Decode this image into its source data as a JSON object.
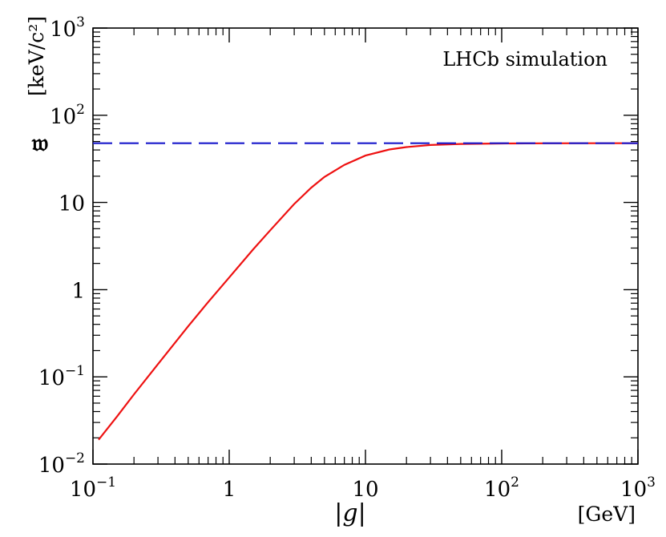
{
  "chart_data": {
    "type": "line",
    "title": "",
    "annotation": "LHCb simulation",
    "xlabel": "|g|",
    "xunit": "[GeV]",
    "ylabel": "𝔴",
    "yunit": "[keV/c²]",
    "xscale": "log",
    "yscale": "log",
    "xlim": [
      0.1,
      1000
    ],
    "ylim": [
      0.01,
      1000
    ],
    "x_ticks": [
      {
        "value": 0.1,
        "base": "10",
        "exp": "−1"
      },
      {
        "value": 1,
        "base": "1",
        "exp": ""
      },
      {
        "value": 10,
        "base": "10",
        "exp": ""
      },
      {
        "value": 100,
        "base": "10",
        "exp": "2"
      },
      {
        "value": 1000,
        "base": "10",
        "exp": "3"
      }
    ],
    "y_ticks": [
      {
        "value": 0.01,
        "base": "10",
        "exp": "−2"
      },
      {
        "value": 0.1,
        "base": "10",
        "exp": "−1"
      },
      {
        "value": 1,
        "base": "1",
        "exp": ""
      },
      {
        "value": 10,
        "base": "10",
        "exp": ""
      },
      {
        "value": 100,
        "base": "10",
        "exp": "2"
      },
      {
        "value": 1000,
        "base": "10",
        "exp": "3"
      }
    ],
    "series": [
      {
        "name": "width",
        "style": "solid",
        "color": "#ee1111",
        "x": [
          0.11,
          0.15,
          0.2,
          0.3,
          0.5,
          0.7,
          1,
          1.5,
          2,
          3,
          4,
          5,
          7,
          10,
          15,
          20,
          30,
          50,
          100,
          200,
          500,
          1000
        ],
        "y": [
          0.019,
          0.035,
          0.063,
          0.14,
          0.38,
          0.72,
          1.38,
          2.9,
          4.8,
          9.6,
          14.8,
          19.6,
          27.0,
          34.5,
          40.5,
          43.2,
          45.6,
          46.9,
          47.5,
          47.7,
          47.8,
          47.8
        ]
      },
      {
        "name": "asymptote",
        "style": "dashed",
        "color": "#1a1acc",
        "x": [
          0.1,
          1000
        ],
        "y": [
          47.8,
          47.8
        ]
      }
    ]
  }
}
